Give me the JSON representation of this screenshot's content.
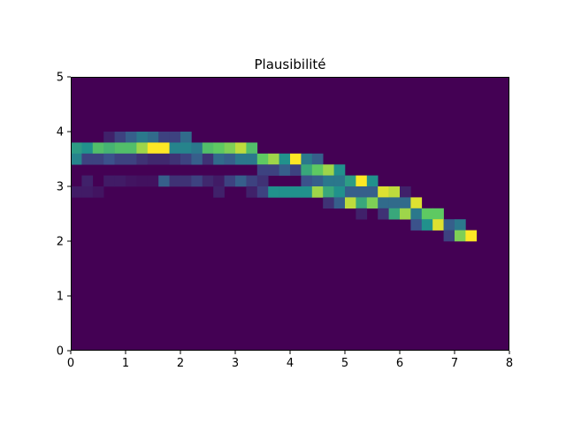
{
  "chart_data": {
    "type": "heatmap",
    "title": "Plausibilité",
    "xlabel": "",
    "ylabel": "",
    "xlim": [
      0,
      8
    ],
    "ylim": [
      0,
      5
    ],
    "xticks": [
      0,
      1,
      2,
      3,
      4,
      5,
      6,
      7,
      8
    ],
    "yticks": [
      0,
      1,
      2,
      3,
      4,
      5
    ],
    "x_tick_labels": [
      "0",
      "1",
      "2",
      "3",
      "4",
      "5",
      "6",
      "7",
      "8"
    ],
    "y_tick_labels": [
      "0",
      "1",
      "2",
      "3",
      "4",
      "5"
    ],
    "colormap": "viridis",
    "background_value": 0,
    "bin_width": 0.2,
    "bin_height": 0.2,
    "cells": [
      [
        0.0,
        3.6,
        0.55
      ],
      [
        0.0,
        3.4,
        0.45
      ],
      [
        0.0,
        2.8,
        0.08
      ],
      [
        0.2,
        3.6,
        0.5
      ],
      [
        0.2,
        3.4,
        0.2
      ],
      [
        0.2,
        3.0,
        0.1
      ],
      [
        0.2,
        2.8,
        0.08
      ],
      [
        0.4,
        3.6,
        0.7
      ],
      [
        0.4,
        3.4,
        0.2
      ],
      [
        0.4,
        2.8,
        0.06
      ],
      [
        0.6,
        3.8,
        0.1
      ],
      [
        0.6,
        3.6,
        0.65
      ],
      [
        0.6,
        3.4,
        0.25
      ],
      [
        0.6,
        3.0,
        0.08
      ],
      [
        0.8,
        3.8,
        0.2
      ],
      [
        0.8,
        3.6,
        0.7
      ],
      [
        0.8,
        3.4,
        0.2
      ],
      [
        0.8,
        3.0,
        0.08
      ],
      [
        1.0,
        3.8,
        0.3
      ],
      [
        1.0,
        3.6,
        0.7
      ],
      [
        1.0,
        3.4,
        0.2
      ],
      [
        1.0,
        3.0,
        0.06
      ],
      [
        1.2,
        3.8,
        0.4
      ],
      [
        1.2,
        3.6,
        0.85
      ],
      [
        1.2,
        3.4,
        0.15
      ],
      [
        1.2,
        3.0,
        0.05
      ],
      [
        1.4,
        3.8,
        0.35
      ],
      [
        1.4,
        3.6,
        1.0
      ],
      [
        1.4,
        3.4,
        0.12
      ],
      [
        1.4,
        3.0,
        0.05
      ],
      [
        1.6,
        3.8,
        0.2
      ],
      [
        1.6,
        3.6,
        1.0
      ],
      [
        1.6,
        3.4,
        0.12
      ],
      [
        1.6,
        3.0,
        0.3
      ],
      [
        1.8,
        3.8,
        0.2
      ],
      [
        1.8,
        3.6,
        0.45
      ],
      [
        1.8,
        3.4,
        0.15
      ],
      [
        1.8,
        3.0,
        0.15
      ],
      [
        2.0,
        3.8,
        0.35
      ],
      [
        2.0,
        3.6,
        0.45
      ],
      [
        2.0,
        3.4,
        0.2
      ],
      [
        2.0,
        3.0,
        0.15
      ],
      [
        2.2,
        3.6,
        0.4
      ],
      [
        2.2,
        3.4,
        0.3
      ],
      [
        2.2,
        3.0,
        0.2
      ],
      [
        2.4,
        3.6,
        0.7
      ],
      [
        2.4,
        3.4,
        0.15
      ],
      [
        2.4,
        3.0,
        0.12
      ],
      [
        2.6,
        3.6,
        0.75
      ],
      [
        2.6,
        3.4,
        0.35
      ],
      [
        2.6,
        3.0,
        0.08
      ],
      [
        2.6,
        2.8,
        0.1
      ],
      [
        2.8,
        3.6,
        0.8
      ],
      [
        2.8,
        3.4,
        0.3
      ],
      [
        2.8,
        3.0,
        0.2
      ],
      [
        3.0,
        3.6,
        0.9
      ],
      [
        3.0,
        3.4,
        0.4
      ],
      [
        3.0,
        3.0,
        0.3
      ],
      [
        3.2,
        3.6,
        0.7
      ],
      [
        3.2,
        3.4,
        0.4
      ],
      [
        3.2,
        3.0,
        0.2
      ],
      [
        3.2,
        2.8,
        0.1
      ],
      [
        3.4,
        3.4,
        0.75
      ],
      [
        3.4,
        3.2,
        0.2
      ],
      [
        3.4,
        3.0,
        0.15
      ],
      [
        3.4,
        2.8,
        0.2
      ],
      [
        3.6,
        3.4,
        0.85
      ],
      [
        3.6,
        3.2,
        0.2
      ],
      [
        3.6,
        2.8,
        0.5
      ],
      [
        3.8,
        3.4,
        0.5
      ],
      [
        3.8,
        3.2,
        0.3
      ],
      [
        3.8,
        2.8,
        0.5
      ],
      [
        4.0,
        3.4,
        1.0
      ],
      [
        4.0,
        3.2,
        0.2
      ],
      [
        4.0,
        2.8,
        0.5
      ],
      [
        4.2,
        3.4,
        0.4
      ],
      [
        4.2,
        3.2,
        0.6
      ],
      [
        4.2,
        3.0,
        0.25
      ],
      [
        4.2,
        2.8,
        0.5
      ],
      [
        4.4,
        3.4,
        0.3
      ],
      [
        4.4,
        3.2,
        0.75
      ],
      [
        4.4,
        3.0,
        0.3
      ],
      [
        4.4,
        2.8,
        0.85
      ],
      [
        4.6,
        3.2,
        0.85
      ],
      [
        4.6,
        3.0,
        0.4
      ],
      [
        4.6,
        2.8,
        0.6
      ],
      [
        4.6,
        2.6,
        0.15
      ],
      [
        4.8,
        3.2,
        0.5
      ],
      [
        4.8,
        3.0,
        0.4
      ],
      [
        4.8,
        2.8,
        0.5
      ],
      [
        4.8,
        2.6,
        0.3
      ],
      [
        5.0,
        3.0,
        0.55
      ],
      [
        5.0,
        2.8,
        0.3
      ],
      [
        5.0,
        2.6,
        0.9
      ],
      [
        5.2,
        3.0,
        1.0
      ],
      [
        5.2,
        2.8,
        0.3
      ],
      [
        5.2,
        2.6,
        0.6
      ],
      [
        5.2,
        2.4,
        0.1
      ],
      [
        5.4,
        3.0,
        0.5
      ],
      [
        5.4,
        2.8,
        0.3
      ],
      [
        5.4,
        2.6,
        0.8
      ],
      [
        5.6,
        2.8,
        0.95
      ],
      [
        5.6,
        2.6,
        0.35
      ],
      [
        5.6,
        2.4,
        0.15
      ],
      [
        5.8,
        2.8,
        0.9
      ],
      [
        5.8,
        2.6,
        0.35
      ],
      [
        5.8,
        2.4,
        0.6
      ],
      [
        6.0,
        2.8,
        0.1
      ],
      [
        6.0,
        2.6,
        0.35
      ],
      [
        6.0,
        2.4,
        0.85
      ],
      [
        6.2,
        2.6,
        0.95
      ],
      [
        6.2,
        2.4,
        0.4
      ],
      [
        6.2,
        2.2,
        0.25
      ],
      [
        6.4,
        2.4,
        0.75
      ],
      [
        6.4,
        2.2,
        0.5
      ],
      [
        6.6,
        2.4,
        0.75
      ],
      [
        6.6,
        2.2,
        0.95
      ],
      [
        6.8,
        2.2,
        0.3
      ],
      [
        6.8,
        2.0,
        0.2
      ],
      [
        7.0,
        2.2,
        0.4
      ],
      [
        7.0,
        2.0,
        0.8
      ],
      [
        7.2,
        2.0,
        1.0
      ]
    ]
  }
}
